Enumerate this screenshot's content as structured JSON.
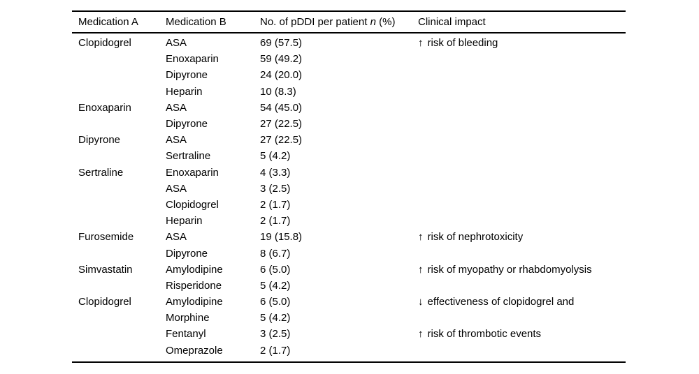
{
  "table": {
    "columns": {
      "med_a": "Medication A",
      "med_b": "Medication B",
      "pddi_prefix": "No. of pDDI per patient ",
      "pddi_italic": "n",
      "pddi_suffix": " (%)",
      "impact": "Clinical impact"
    },
    "rows": [
      {
        "a": "Clopidogrel",
        "b": "ASA",
        "n": "69 (57.5)",
        "impact_arrow": "↑",
        "impact_dir": "up",
        "impact_text": "risk of bleeding"
      },
      {
        "a": "",
        "b": "Enoxaparin",
        "n": "59 (49.2)",
        "impact_arrow": "",
        "impact_dir": "",
        "impact_text": ""
      },
      {
        "a": "",
        "b": "Dipyrone",
        "n": "24 (20.0)",
        "impact_arrow": "",
        "impact_dir": "",
        "impact_text": ""
      },
      {
        "a": "",
        "b": "Heparin",
        "n": "10 (8.3)",
        "impact_arrow": "",
        "impact_dir": "",
        "impact_text": ""
      },
      {
        "a": "Enoxaparin",
        "b": "ASA",
        "n": "54 (45.0)",
        "impact_arrow": "",
        "impact_dir": "",
        "impact_text": ""
      },
      {
        "a": "",
        "b": "Dipyrone",
        "n": "27 (22.5)",
        "impact_arrow": "",
        "impact_dir": "",
        "impact_text": ""
      },
      {
        "a": "Dipyrone",
        "b": "ASA",
        "n": "27 (22.5)",
        "impact_arrow": "",
        "impact_dir": "",
        "impact_text": ""
      },
      {
        "a": "",
        "b": "Sertraline",
        "n": "5 (4.2)",
        "impact_arrow": "",
        "impact_dir": "",
        "impact_text": ""
      },
      {
        "a": "Sertraline",
        "b": "Enoxaparin",
        "n": "4 (3.3)",
        "impact_arrow": "",
        "impact_dir": "",
        "impact_text": ""
      },
      {
        "a": "",
        "b": "ASA",
        "n": "3 (2.5)",
        "impact_arrow": "",
        "impact_dir": "",
        "impact_text": ""
      },
      {
        "a": "",
        "b": "Clopidogrel",
        "n": "2 (1.7)",
        "impact_arrow": "",
        "impact_dir": "",
        "impact_text": ""
      },
      {
        "a": "",
        "b": "Heparin",
        "n": "2 (1.7)",
        "impact_arrow": "",
        "impact_dir": "",
        "impact_text": ""
      },
      {
        "a": "Furosemide",
        "b": "ASA",
        "n": "19 (15.8)",
        "impact_arrow": "↑",
        "impact_dir": "up",
        "impact_text": "risk of nephrotoxicity"
      },
      {
        "a": "",
        "b": "Dipyrone",
        "n": "8 (6.7)",
        "impact_arrow": "",
        "impact_dir": "",
        "impact_text": ""
      },
      {
        "a": "Simvastatin",
        "b": "Amylodipine",
        "n": "6 (5.0)",
        "impact_arrow": "↑",
        "impact_dir": "up",
        "impact_text": "risk of myopathy or rhabdomyolysis"
      },
      {
        "a": "",
        "b": "Risperidone",
        "n": "5 (4.2)",
        "impact_arrow": "",
        "impact_dir": "",
        "impact_text": ""
      },
      {
        "a": "Clopidogrel",
        "b": "Amylodipine",
        "n": "6 (5.0)",
        "impact_arrow": "↓",
        "impact_dir": "down",
        "impact_text": "effectiveness of clopidogrel and"
      },
      {
        "a": "",
        "b": "Morphine",
        "n": "5 (4.2)",
        "impact_arrow": "",
        "impact_dir": "",
        "impact_text": ""
      },
      {
        "a": "",
        "b": "Fentanyl",
        "n": "3 (2.5)",
        "impact_arrow": "↑",
        "impact_dir": "up",
        "impact_text": "risk of thrombotic events"
      },
      {
        "a": "",
        "b": "Omeprazole",
        "n": "2 (1.7)",
        "impact_arrow": "",
        "impact_dir": "",
        "impact_text": ""
      }
    ]
  }
}
